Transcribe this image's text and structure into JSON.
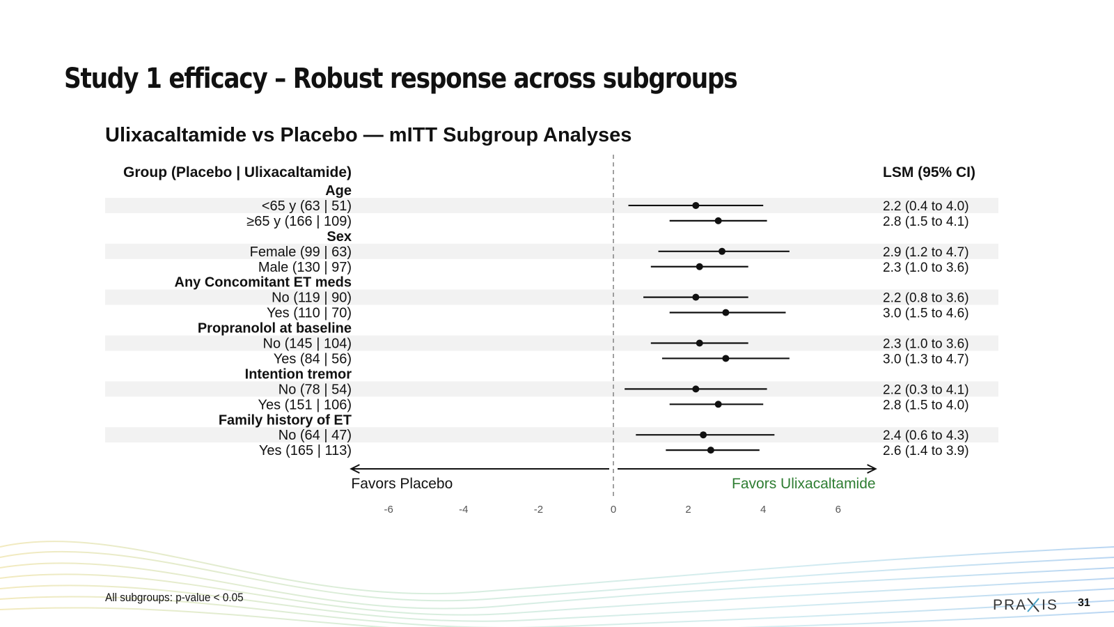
{
  "slide": {
    "title": "Study 1 efficacy – Robust response across subgroups",
    "footnote": "All subgroups: p-value < 0.05",
    "page_number": "31",
    "logo_text": "PRAXIS"
  },
  "colors": {
    "text": "#111111",
    "stripe": "#f2f2f2",
    "favors_ulixacaltamide": "#2e7d32",
    "reference_line": "#888888",
    "tick_label": "#555555"
  },
  "chart_data": {
    "type": "forest",
    "title": "Ulixacaltamide vs Placebo — mITT Subgroup Analyses",
    "left_header": "Group (Placebo | Ulixacaltamide)",
    "right_header": "LSM (95% CI)",
    "xlim": [
      -7,
      7
    ],
    "x_ticks": [
      -6,
      -4,
      -2,
      0,
      2,
      4,
      6
    ],
    "reference_x": 0,
    "favors_left": "Favors Placebo",
    "favors_right": "Favors Ulixacaltamide",
    "rows": [
      {
        "kind": "header",
        "label": "Age"
      },
      {
        "kind": "item",
        "label": "<65 y  (63 | 51)",
        "est": 2.2,
        "lo": 0.4,
        "hi": 4.0,
        "ci_text": "2.2 (0.4 to 4.0)"
      },
      {
        "kind": "item",
        "label": "≥65 y  (166 | 109)",
        "est": 2.8,
        "lo": 1.5,
        "hi": 4.1,
        "ci_text": "2.8 (1.5 to 4.1)"
      },
      {
        "kind": "header",
        "label": "Sex"
      },
      {
        "kind": "item",
        "label": "Female  (99 | 63)",
        "est": 2.9,
        "lo": 1.2,
        "hi": 4.7,
        "ci_text": "2.9 (1.2 to 4.7)"
      },
      {
        "kind": "item",
        "label": "Male  (130 | 97)",
        "est": 2.3,
        "lo": 1.0,
        "hi": 3.6,
        "ci_text": "2.3 (1.0 to 3.6)"
      },
      {
        "kind": "header",
        "label": "Any Concomitant ET meds"
      },
      {
        "kind": "item",
        "label": "No  (119 | 90)",
        "est": 2.2,
        "lo": 0.8,
        "hi": 3.6,
        "ci_text": "2.2 (0.8 to 3.6)"
      },
      {
        "kind": "item",
        "label": "Yes  (110 | 70)",
        "est": 3.0,
        "lo": 1.5,
        "hi": 4.6,
        "ci_text": "3.0 (1.5 to 4.6)"
      },
      {
        "kind": "header",
        "label": "Propranolol at baseline"
      },
      {
        "kind": "item",
        "label": "No  (145 | 104)",
        "est": 2.3,
        "lo": 1.0,
        "hi": 3.6,
        "ci_text": "2.3 (1.0 to 3.6)"
      },
      {
        "kind": "item",
        "label": "Yes  (84 | 56)",
        "est": 3.0,
        "lo": 1.3,
        "hi": 4.7,
        "ci_text": "3.0 (1.3 to 4.7)"
      },
      {
        "kind": "header",
        "label": "Intention tremor"
      },
      {
        "kind": "item",
        "label": "No  (78 | 54)",
        "est": 2.2,
        "lo": 0.3,
        "hi": 4.1,
        "ci_text": "2.2 (0.3 to 4.1)"
      },
      {
        "kind": "item",
        "label": "Yes  (151 | 106)",
        "est": 2.8,
        "lo": 1.5,
        "hi": 4.0,
        "ci_text": "2.8 (1.5 to 4.0)"
      },
      {
        "kind": "header",
        "label": "Family history of ET"
      },
      {
        "kind": "item",
        "label": "No  (64 | 47)",
        "est": 2.4,
        "lo": 0.6,
        "hi": 4.3,
        "ci_text": "2.4 (0.6 to 4.3)"
      },
      {
        "kind": "item",
        "label": "Yes  (165 | 113)",
        "est": 2.6,
        "lo": 1.4,
        "hi": 3.9,
        "ci_text": "2.6 (1.4 to 3.9)"
      }
    ]
  }
}
